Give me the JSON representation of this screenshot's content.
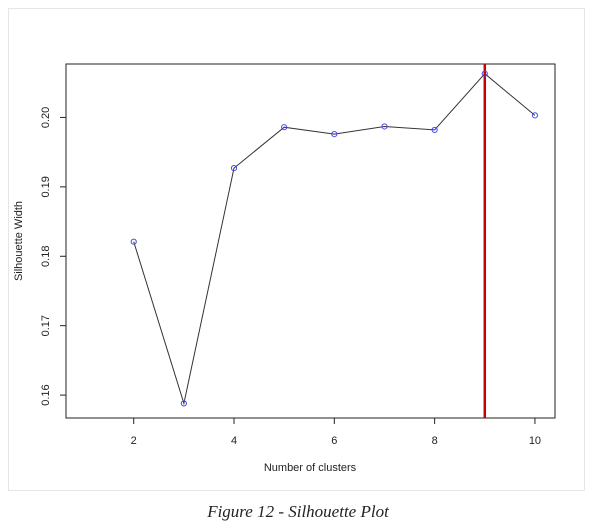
{
  "figure_caption": "Figure 12 - Silhouette Plot",
  "chart_data": {
    "type": "line",
    "title": "",
    "xlabel": "Number of clusters",
    "ylabel": "Silhouette Width",
    "x": [
      2,
      3,
      4,
      5,
      6,
      7,
      8,
      9,
      10
    ],
    "series": [
      {
        "values": [
          0.1821,
          0.1588,
          0.1927,
          0.1986,
          0.1976,
          0.1987,
          0.1982,
          0.2063,
          0.2003
        ]
      }
    ],
    "x_ticks": [
      2,
      4,
      6,
      8,
      10
    ],
    "y_ticks": [
      0.16,
      0.17,
      0.18,
      0.19,
      0.2
    ],
    "x_tick_labels": [
      "2",
      "4",
      "6",
      "8",
      "10"
    ],
    "y_tick_labels": [
      "0.16",
      "0.17",
      "0.18",
      "0.19",
      "0.20"
    ],
    "xlim": [
      0.65,
      10.4
    ],
    "ylim": [
      0.1567,
      0.2077
    ],
    "vertical_line_x": 9,
    "grid": false,
    "colors": {
      "line": "#333333",
      "points": "#4a4af0",
      "vertical_line": "#cc0000",
      "axis": "#222222"
    }
  }
}
